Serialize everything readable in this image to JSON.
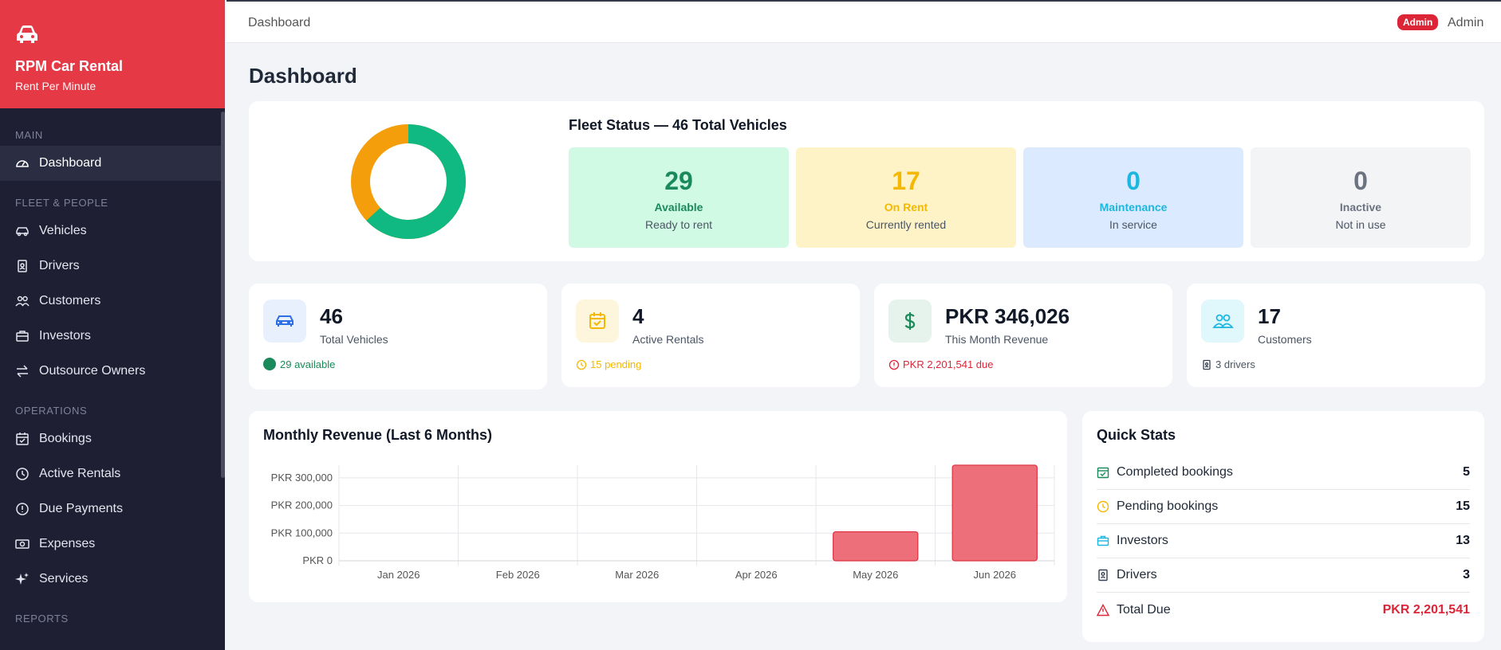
{
  "brand": {
    "name": "RPM Car Rental",
    "tagline": "Rent Per Minute"
  },
  "sidebar": {
    "sections": [
      {
        "label": "MAIN",
        "items": [
          {
            "label": "Dashboard",
            "icon": "gauge-icon",
            "active": true
          }
        ]
      },
      {
        "label": "FLEET & PEOPLE",
        "items": [
          {
            "label": "Vehicles",
            "icon": "car-icon"
          },
          {
            "label": "Drivers",
            "icon": "id-badge-icon"
          },
          {
            "label": "Customers",
            "icon": "people-icon"
          },
          {
            "label": "Investors",
            "icon": "briefcase-icon"
          },
          {
            "label": "Outsource Owners",
            "icon": "arrows-exchange-icon"
          }
        ]
      },
      {
        "label": "OPERATIONS",
        "items": [
          {
            "label": "Bookings",
            "icon": "calendar-check-icon"
          },
          {
            "label": "Active Rentals",
            "icon": "clock-icon"
          },
          {
            "label": "Due Payments",
            "icon": "alert-circle-icon"
          },
          {
            "label": "Expenses",
            "icon": "cash-icon"
          },
          {
            "label": "Services",
            "icon": "sparkles-icon"
          }
        ]
      },
      {
        "label": "REPORTS",
        "items": []
      }
    ]
  },
  "topbar": {
    "breadcrumb": "Dashboard",
    "role_badge": "Admin",
    "user": "Admin"
  },
  "page": {
    "title": "Dashboard"
  },
  "fleet": {
    "title": "Fleet Status — 46 Total Vehicles",
    "statuses": [
      {
        "count": "29",
        "label": "Available",
        "desc": "Ready to rent",
        "bg": "#d1fae5",
        "color": "#1a8a5a"
      },
      {
        "count": "17",
        "label": "On Rent",
        "desc": "Currently rented",
        "bg": "#fef3c7",
        "color": "#f5b800"
      },
      {
        "count": "0",
        "label": "Maintenance",
        "desc": "In service",
        "bg": "#dbeafe",
        "color": "#1cb7e0"
      },
      {
        "count": "0",
        "label": "Inactive",
        "desc": "Not in use",
        "bg": "#f3f4f6",
        "color": "#6b7280"
      }
    ],
    "donut": {
      "available": 29,
      "on_rent": 17,
      "available_color": "#10b981",
      "on_rent_color": "#f59e0b"
    }
  },
  "stats": [
    {
      "value": "46",
      "label": "Total Vehicles",
      "foot": "29 available",
      "icon": "car-icon",
      "icon_bg": "#e8f0fe",
      "icon_color": "#2f6fe4",
      "foot_color": "#1a8a5a"
    },
    {
      "value": "4",
      "label": "Active Rentals",
      "foot": "15 pending",
      "icon": "calendar-check-icon",
      "icon_bg": "#fef6dc",
      "icon_color": "#f5b800",
      "foot_color": "#f5b800"
    },
    {
      "value": "PKR 346,026",
      "label": "This Month Revenue",
      "foot": "PKR 2,201,541 due",
      "icon": "dollar-icon",
      "icon_bg": "#e6f2ec",
      "icon_color": "#1a8a5a",
      "foot_color": "#dc2638"
    },
    {
      "value": "17",
      "label": "Customers",
      "foot": "3 drivers",
      "icon": "people-icon",
      "icon_bg": "#e0f7fb",
      "icon_color": "#1cb7e0",
      "foot_color": "#4b5563"
    }
  ],
  "revenue": {
    "title": "Monthly Revenue (Last 6 Months)"
  },
  "chart_data": {
    "type": "bar",
    "title": "Monthly Revenue (Last 6 Months)",
    "categories": [
      "Jan 2026",
      "Feb 2026",
      "Mar 2026",
      "Apr 2026",
      "May 2026",
      "Jun 2026"
    ],
    "values": [
      0,
      0,
      0,
      0,
      105000,
      346026
    ],
    "y_ticks": [
      "PKR 0",
      "PKR 100,000",
      "PKR 200,000",
      "PKR 300,000"
    ],
    "ylim": [
      0,
      346026
    ],
    "grid": true,
    "bar_color": "#ec6f7a"
  },
  "quick_stats": {
    "title": "Quick Stats",
    "rows": [
      {
        "label": "Completed bookings",
        "value": "5",
        "icon": "calendar-check-icon",
        "color": "#1a8a5a"
      },
      {
        "label": "Pending bookings",
        "value": "15",
        "icon": "clock-icon",
        "color": "#f5b800"
      },
      {
        "label": "Investors",
        "value": "13",
        "icon": "briefcase-icon",
        "color": "#1cb7e0"
      },
      {
        "label": "Drivers",
        "value": "3",
        "icon": "id-badge-icon",
        "color": "#374151"
      },
      {
        "label": "Total Due",
        "value": "PKR 2,201,541",
        "icon": "warning-triangle-icon",
        "color": "#dc2638"
      }
    ]
  }
}
